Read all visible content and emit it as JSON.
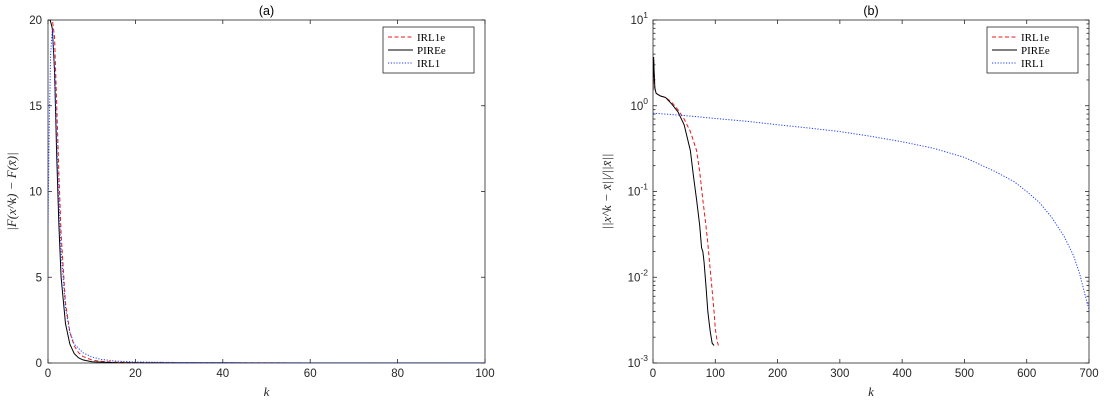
{
  "chart_data": [
    {
      "type": "line",
      "title": "(a)",
      "xlabel": "k",
      "ylabel": "|F(x^k) − F(x̄)|",
      "xlim": [
        0,
        100
      ],
      "ylim": [
        0,
        20
      ],
      "yscale": "linear",
      "xticks": [
        "0",
        "20",
        "40",
        "60",
        "80",
        "100"
      ],
      "yticks": [
        "0",
        "5",
        "10",
        "15",
        "20"
      ],
      "grid": false,
      "legend_position": "top-right",
      "series": [
        {
          "name": "IRL1e",
          "color": "#e8191c",
          "dash": "dashed",
          "x": [
            0,
            1,
            1.5,
            2,
            2.5,
            3,
            4,
            5,
            6,
            7,
            8,
            10,
            12,
            15,
            20,
            30,
            40,
            60,
            80,
            100
          ],
          "y": [
            20,
            20,
            19,
            15,
            11,
            7.5,
            3.5,
            1.8,
            1.0,
            0.6,
            0.38,
            0.18,
            0.1,
            0.05,
            0.02,
            0.01,
            0.005,
            0.003,
            0.002,
            0.001
          ]
        },
        {
          "name": "PIREe",
          "color": "#000000",
          "dash": "solid",
          "x": [
            0,
            0.5,
            1,
            1.5,
            2,
            2.5,
            3,
            4,
            5,
            6,
            7,
            8,
            10,
            15,
            20,
            40,
            60,
            80,
            100
          ],
          "y": [
            20,
            20,
            19.5,
            17,
            12,
            8,
            5,
            2.3,
            1.1,
            0.55,
            0.3,
            0.18,
            0.07,
            0.02,
            0.01,
            0.004,
            0.002,
            0.001,
            0.001
          ]
        },
        {
          "name": "IRL1",
          "color": "#1f3fff",
          "dash": "dotted",
          "x": [
            0,
            0.3,
            0.6,
            1,
            1.5,
            2,
            2.5,
            3,
            4,
            5,
            6,
            8,
            10,
            12,
            15,
            20,
            30,
            40,
            60,
            80,
            100
          ],
          "y": [
            8,
            14,
            18,
            19.5,
            17,
            13,
            9.5,
            6.5,
            3.2,
            1.8,
            1.1,
            0.6,
            0.35,
            0.22,
            0.12,
            0.06,
            0.03,
            0.02,
            0.01,
            0.008,
            0.005
          ]
        }
      ]
    },
    {
      "type": "line",
      "title": "(b)",
      "xlabel": "k",
      "ylabel": "||x^k − x̄||/||x̄||",
      "xlim": [
        0,
        700
      ],
      "ylim": [
        0.001,
        10
      ],
      "yscale": "log",
      "xticks": [
        "0",
        "100",
        "200",
        "300",
        "400",
        "500",
        "600",
        "700"
      ],
      "yticks": [
        "10^-3",
        "10^-2",
        "10^-1",
        "10^0",
        "10^1"
      ],
      "grid": false,
      "legend_position": "top-right",
      "series": [
        {
          "name": "IRL1e",
          "color": "#e8191c",
          "dash": "dashed",
          "x": [
            0,
            1,
            2,
            3,
            5,
            8,
            12,
            20,
            30,
            40,
            50,
            60,
            70,
            75,
            80,
            85,
            88,
            92,
            95,
            98,
            100,
            103,
            105
          ],
          "y": [
            1.5,
            3.5,
            2.2,
            1.6,
            1.4,
            1.35,
            1.3,
            1.25,
            1.1,
            0.9,
            0.7,
            0.5,
            0.3,
            0.17,
            0.08,
            0.04,
            0.025,
            0.012,
            0.007,
            0.004,
            0.0025,
            0.0018,
            0.0016
          ]
        },
        {
          "name": "PIREe",
          "color": "#000000",
          "dash": "solid",
          "x": [
            0,
            1,
            2,
            3,
            5,
            8,
            12,
            20,
            30,
            40,
            50,
            60,
            65,
            70,
            75,
            78,
            80,
            82,
            85,
            88,
            90,
            92,
            95,
            98
          ],
          "y": [
            1.5,
            3.7,
            2.3,
            1.6,
            1.4,
            1.35,
            1.3,
            1.25,
            1.05,
            0.85,
            0.6,
            0.3,
            0.15,
            0.08,
            0.04,
            0.022,
            0.02,
            0.015,
            0.008,
            0.004,
            0.003,
            0.0023,
            0.0017,
            0.0016
          ]
        },
        {
          "name": "IRL1",
          "color": "#1f3fff",
          "dash": "dotted",
          "x": [
            0,
            50,
            100,
            150,
            200,
            250,
            300,
            350,
            400,
            450,
            500,
            550,
            580,
            600,
            620,
            640,
            660,
            675,
            685,
            693,
            700
          ],
          "y": [
            0.82,
            0.77,
            0.71,
            0.66,
            0.6,
            0.55,
            0.5,
            0.44,
            0.38,
            0.32,
            0.25,
            0.17,
            0.13,
            0.1,
            0.075,
            0.05,
            0.03,
            0.018,
            0.011,
            0.0065,
            0.0042
          ]
        }
      ]
    }
  ]
}
